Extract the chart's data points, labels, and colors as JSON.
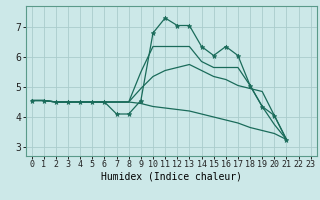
{
  "title": "",
  "xlabel": "Humidex (Indice chaleur)",
  "bg_color": "#cce8e8",
  "grid_color": "#aacccc",
  "line_color": "#1a6b5a",
  "xlim": [
    -0.5,
    23.5
  ],
  "ylim": [
    2.7,
    7.7
  ],
  "xticks": [
    0,
    1,
    2,
    3,
    4,
    5,
    6,
    7,
    8,
    9,
    10,
    11,
    12,
    13,
    14,
    15,
    16,
    17,
    18,
    19,
    20,
    21,
    22,
    23
  ],
  "yticks": [
    3,
    4,
    5,
    6,
    7
  ],
  "lines": [
    {
      "x": [
        0,
        1,
        2,
        3,
        4,
        5,
        6,
        7,
        8,
        9,
        10,
        11,
        12,
        13,
        14,
        15,
        16,
        17,
        18,
        19,
        20,
        21
      ],
      "y": [
        4.55,
        4.55,
        4.5,
        4.5,
        4.5,
        4.5,
        4.5,
        4.1,
        4.1,
        4.55,
        6.8,
        7.3,
        7.05,
        7.05,
        6.35,
        6.05,
        6.35,
        6.05,
        5.05,
        4.35,
        4.05,
        3.25
      ],
      "marker": true
    },
    {
      "x": [
        0,
        1,
        2,
        3,
        4,
        5,
        6,
        7,
        8,
        9,
        10,
        11,
        12,
        13,
        14,
        15,
        16,
        17,
        18,
        19,
        20,
        21
      ],
      "y": [
        4.55,
        4.55,
        4.5,
        4.5,
        4.5,
        4.5,
        4.5,
        4.5,
        4.5,
        5.5,
        6.35,
        6.35,
        6.35,
        6.35,
        5.85,
        5.65,
        5.65,
        5.65,
        5.05,
        4.35,
        3.75,
        3.25
      ],
      "marker": false
    },
    {
      "x": [
        0,
        1,
        2,
        3,
        4,
        5,
        6,
        7,
        8,
        9,
        10,
        11,
        12,
        13,
        14,
        15,
        16,
        17,
        18,
        19,
        20,
        21
      ],
      "y": [
        4.55,
        4.55,
        4.5,
        4.5,
        4.5,
        4.5,
        4.5,
        4.5,
        4.5,
        4.95,
        5.35,
        5.55,
        5.65,
        5.75,
        5.55,
        5.35,
        5.25,
        5.05,
        4.95,
        4.85,
        4.05,
        3.25
      ],
      "marker": false
    },
    {
      "x": [
        0,
        1,
        2,
        3,
        4,
        5,
        6,
        7,
        8,
        9,
        10,
        11,
        12,
        13,
        14,
        15,
        16,
        17,
        18,
        19,
        20,
        21
      ],
      "y": [
        4.55,
        4.55,
        4.5,
        4.5,
        4.5,
        4.5,
        4.5,
        4.5,
        4.5,
        4.45,
        4.35,
        4.3,
        4.25,
        4.2,
        4.1,
        4.0,
        3.9,
        3.8,
        3.65,
        3.55,
        3.45,
        3.25
      ],
      "marker": false
    }
  ],
  "xlabel_fontsize": 7,
  "tick_fontsize": 6
}
